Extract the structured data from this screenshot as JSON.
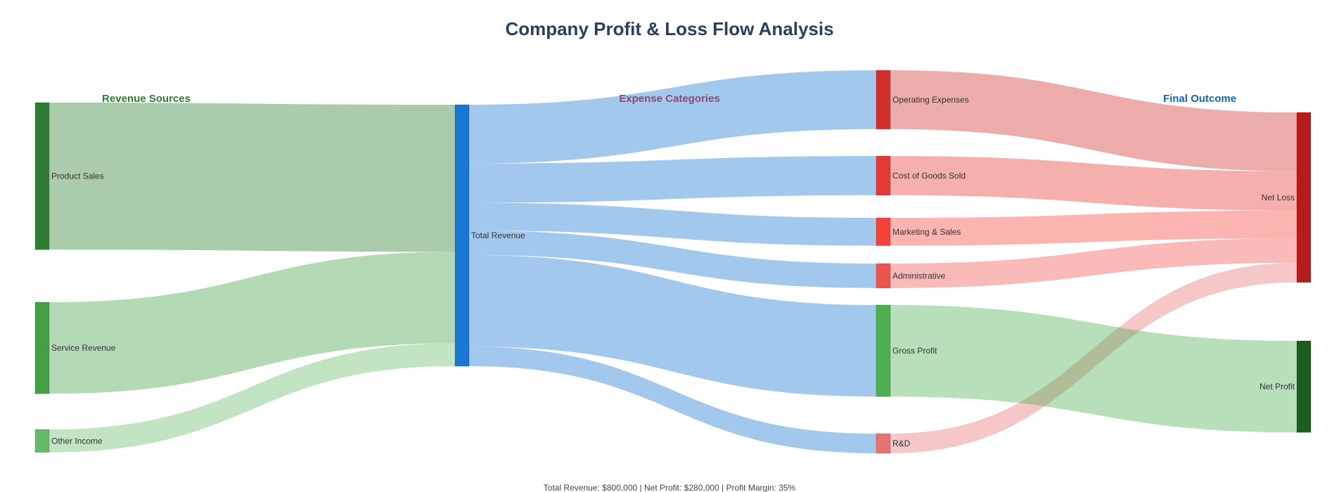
{
  "chart_data": {
    "type": "sankey",
    "title": "Company Profit & Loss Flow Analysis",
    "column_headers": [
      {
        "text": "Revenue Sources",
        "color": "#2e7d32"
      },
      {
        "text": "Expense Categories",
        "color": "#d32f2f"
      },
      {
        "text": "Final Outcome",
        "color": "#1565c0"
      }
    ],
    "nodes": [
      {
        "id": "product_sales",
        "label": "Product Sales",
        "color": "#2e7d32"
      },
      {
        "id": "service_revenue",
        "label": "Service Revenue",
        "color": "#43a047"
      },
      {
        "id": "other_income",
        "label": "Other Income",
        "color": "#66bb6a"
      },
      {
        "id": "total_revenue",
        "label": "Total Revenue",
        "color": "#1976d2"
      },
      {
        "id": "operating_expenses",
        "label": "Operating Expenses",
        "color": "#d32f2f"
      },
      {
        "id": "cogs",
        "label": "Cost of Goods Sold",
        "color": "#e53935"
      },
      {
        "id": "marketing_sales",
        "label": "Marketing & Sales",
        "color": "#f44336"
      },
      {
        "id": "administrative",
        "label": "Administrative",
        "color": "#ef5350"
      },
      {
        "id": "gross_profit",
        "label": "Gross Profit",
        "color": "#4caf50"
      },
      {
        "id": "rnd",
        "label": "R&D",
        "color": "#e57373"
      },
      {
        "id": "net_loss",
        "label": "Net Loss",
        "color": "#b71c1c"
      },
      {
        "id": "net_profit",
        "label": "Net Profit",
        "color": "#1b5e20"
      }
    ],
    "links": [
      {
        "source": "product_sales",
        "target": "total_revenue",
        "value": 450000,
        "color": "rgba(46,125,50,0.4)"
      },
      {
        "source": "service_revenue",
        "target": "total_revenue",
        "value": 280000,
        "color": "rgba(67,160,71,0.4)"
      },
      {
        "source": "other_income",
        "target": "total_revenue",
        "value": 70000,
        "color": "rgba(102,187,106,0.4)"
      },
      {
        "source": "total_revenue",
        "target": "operating_expenses",
        "value": 180000,
        "color": "rgba(25,118,210,0.4)"
      },
      {
        "source": "total_revenue",
        "target": "cogs",
        "value": 120000,
        "color": "rgba(25,118,210,0.4)"
      },
      {
        "source": "total_revenue",
        "target": "marketing_sales",
        "value": 85000,
        "color": "rgba(25,118,210,0.4)"
      },
      {
        "source": "total_revenue",
        "target": "administrative",
        "value": 75000,
        "color": "rgba(25,118,210,0.4)"
      },
      {
        "source": "total_revenue",
        "target": "gross_profit",
        "value": 280000,
        "color": "rgba(25,118,210,0.4)"
      },
      {
        "source": "total_revenue",
        "target": "rnd",
        "value": 60000,
        "color": "rgba(25,118,210,0.4)"
      },
      {
        "source": "operating_expenses",
        "target": "net_loss",
        "value": 180000,
        "color": "rgba(211,47,47,0.4)"
      },
      {
        "source": "cogs",
        "target": "net_loss",
        "value": 120000,
        "color": "rgba(229,57,53,0.4)"
      },
      {
        "source": "marketing_sales",
        "target": "net_loss",
        "value": 85000,
        "color": "rgba(244,67,54,0.4)"
      },
      {
        "source": "administrative",
        "target": "net_loss",
        "value": 75000,
        "color": "rgba(239,83,80,0.4)"
      },
      {
        "source": "rnd",
        "target": "net_loss",
        "value": 60000,
        "color": "rgba(229,115,115,0.4)"
      },
      {
        "source": "gross_profit",
        "target": "net_profit",
        "value": 280000,
        "color": "rgba(76,175,80,0.4)"
      }
    ],
    "footer": "Total Revenue: $800,000 | Net Profit: $280,000 | Profit Margin: 35%"
  }
}
